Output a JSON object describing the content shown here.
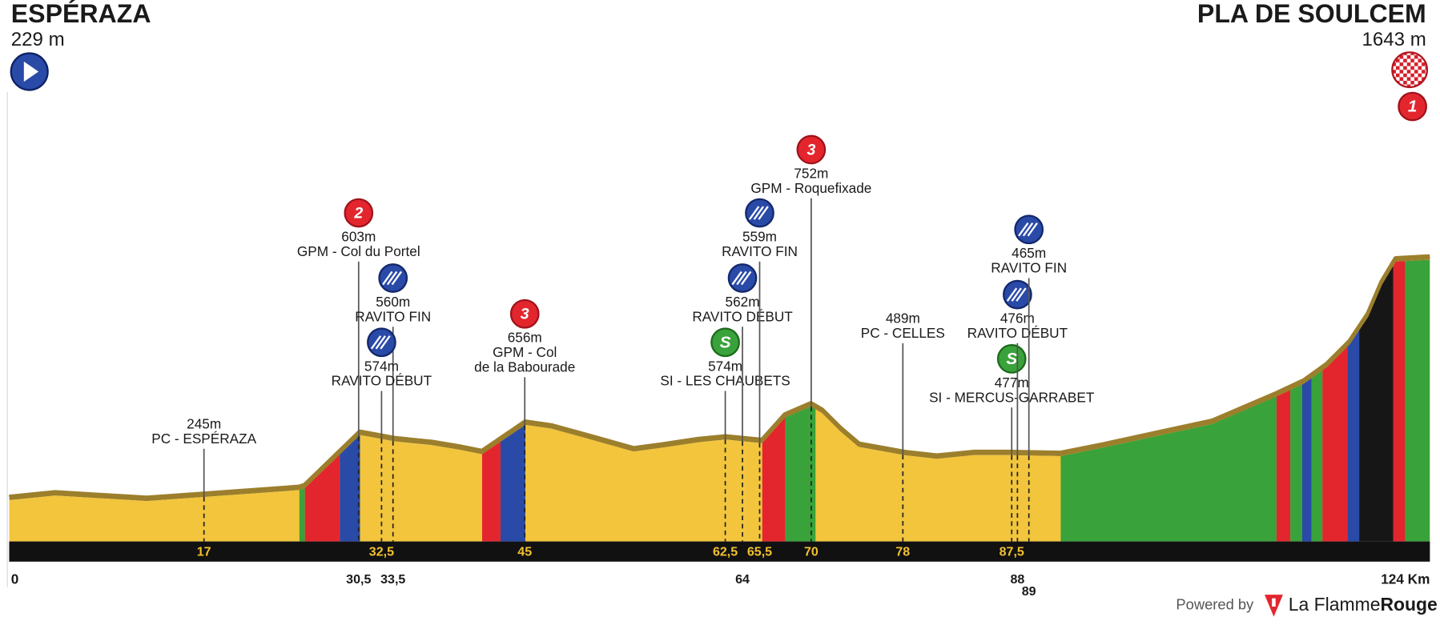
{
  "start": {
    "name": "ESPÉRAZA",
    "altitude": "229 m",
    "km": 0,
    "km_label": "0"
  },
  "finish": {
    "name": "PLA DE SOULCEM",
    "altitude": "1643 m",
    "km": 124,
    "km_label": "124 Km",
    "badge": "1"
  },
  "points": [
    {
      "km": 17,
      "km_label": "17",
      "km_row": "strip",
      "altitude": "245m",
      "label_lines": [
        "PC - ESPÉRAZA"
      ]
    },
    {
      "km": 30.5,
      "km_label": "30,5",
      "km_row": "below",
      "kind": "climb",
      "badge": "2",
      "altitude": "603m",
      "label_lines": [
        "GPM - Col du Portel"
      ]
    },
    {
      "km": 33.5,
      "km_label": "33,5",
      "km_row": "below",
      "kind": "feed",
      "altitude": "560m",
      "label_lines": [
        "RAVITO FIN"
      ]
    },
    {
      "km": 32.5,
      "km_label": "32,5",
      "km_row": "strip",
      "kind": "feed",
      "altitude": "574m",
      "label_lines": [
        "RAVITO DÉBUT"
      ]
    },
    {
      "km": 45,
      "km_label": "45",
      "km_row": "strip",
      "kind": "climb",
      "badge": "3",
      "altitude": "656m",
      "label_lines": [
        "GPM - Col",
        "de la Babourade"
      ]
    },
    {
      "km": 62.5,
      "km_label": "62,5",
      "km_row": "strip",
      "kind": "sprint",
      "badge": "S",
      "altitude": "574m",
      "label_lines": [
        "SI - LES CHAUBETS"
      ]
    },
    {
      "km": 64,
      "km_label": "64",
      "km_row": "below",
      "kind": "feed",
      "altitude": "562m",
      "label_lines": [
        "RAVITO DÉBUT"
      ]
    },
    {
      "km": 65.5,
      "km_label": "65,5",
      "km_row": "strip",
      "kind": "feed",
      "altitude": "559m",
      "label_lines": [
        "RAVITO FIN"
      ]
    },
    {
      "km": 70,
      "km_label": "70",
      "km_row": "strip",
      "kind": "climb",
      "badge": "3",
      "altitude": "752m",
      "label_lines": [
        "GPM - Roquefixade"
      ]
    },
    {
      "km": 78,
      "km_label": "78",
      "km_row": "strip",
      "altitude": "489m",
      "label_lines": [
        "PC - CELLES"
      ]
    },
    {
      "km": 87.5,
      "km_label": "87,5",
      "km_row": "strip",
      "kind": "sprint",
      "badge": "S",
      "altitude": "477m",
      "label_lines": [
        "SI - MERCUS-GARRABET"
      ]
    },
    {
      "km": 88,
      "km_label": "88",
      "km_row": "below",
      "kind": "feed",
      "altitude": "476m",
      "label_lines": [
        "RAVITO DÉBUT"
      ]
    },
    {
      "km": 89,
      "km_label": "89",
      "km_row": "below",
      "kind": "feed",
      "altitude": "465m",
      "label_lines": [
        "RAVITO FIN"
      ]
    }
  ],
  "footer": {
    "powered_by": "Powered by",
    "brand_light": "La Flamme",
    "brand_bold": "Rouge"
  }
}
